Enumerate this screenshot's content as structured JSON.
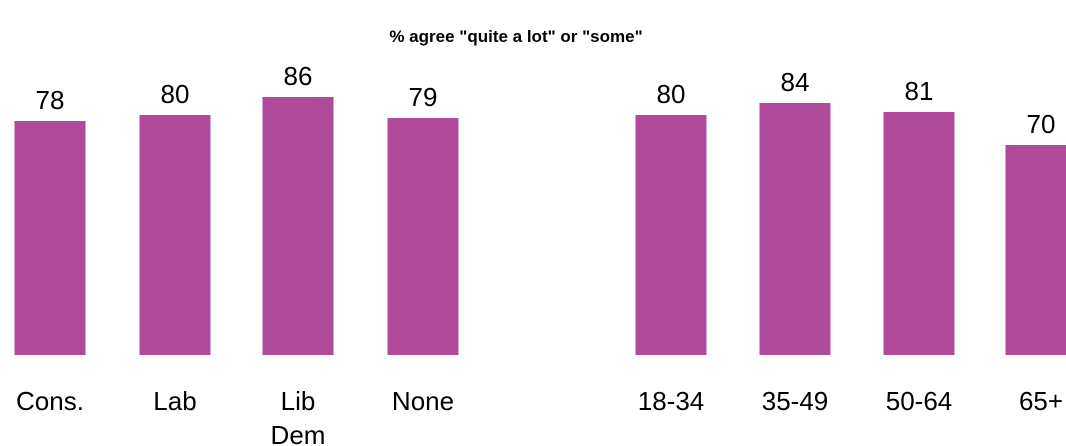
{
  "chart_data": {
    "type": "bar",
    "title": "% agree \"quite a lot\" or \"some\"",
    "xlabel": "",
    "ylabel": "",
    "ylim": [
      0,
      100
    ],
    "grid": false,
    "bar_color": "#b04a9a",
    "categories": [
      "Cons.",
      "Lab",
      "Lib Dem",
      "None",
      "18-34",
      "35-49",
      "50-64",
      "65+"
    ],
    "values": [
      78,
      80,
      86,
      79,
      80,
      84,
      81,
      70
    ]
  }
}
